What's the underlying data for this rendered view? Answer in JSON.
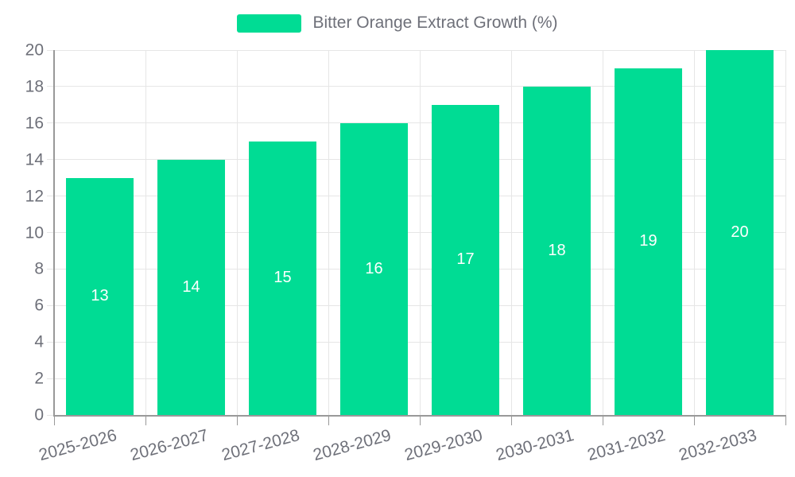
{
  "legend": {
    "label": "Bitter Orange Extract Growth (%)"
  },
  "chart_data": {
    "type": "bar",
    "title": "Bitter Orange Extract Growth (%)",
    "categories": [
      "2025-2026",
      "2026-2027",
      "2027-2028",
      "2028-2029",
      "2029-2030",
      "2030-2031",
      "2031-2032",
      "2032-2033"
    ],
    "values": [
      13,
      14,
      15,
      16,
      17,
      18,
      19,
      20
    ],
    "value_labels": [
      "13",
      "14",
      "15",
      "16",
      "17",
      "18",
      "19",
      "20"
    ],
    "y_ticks": [
      0,
      2,
      4,
      6,
      8,
      10,
      12,
      14,
      16,
      18,
      20
    ],
    "ylim": [
      0,
      20
    ],
    "xlabel": "",
    "ylabel": "",
    "grid": true,
    "legend_position": "top-center",
    "x_label_rotation_deg": -15,
    "colors": {
      "bar": "#00dc94",
      "value_label": "#ffffff",
      "axis_line": "#999999",
      "grid_line": "#e6e6e6",
      "tick_text": "#6e7079",
      "legend_text": "#6e7079"
    }
  }
}
